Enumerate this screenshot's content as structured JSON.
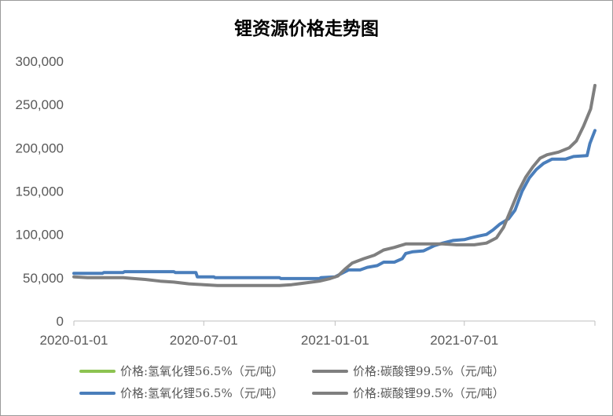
{
  "chart_data": {
    "type": "line",
    "title": "锂资源价格走势图",
    "xlabel": "",
    "ylabel": "",
    "ylim": [
      0,
      300000
    ],
    "yticks": [
      0,
      50000,
      100000,
      150000,
      200000,
      250000,
      300000
    ],
    "ytick_labels": [
      "0",
      "50,000",
      "100,000",
      "150,000",
      "200,000",
      "250,000",
      "300,000"
    ],
    "xlim": [
      "2020-01-01",
      "2021-12-31"
    ],
    "xticks": [
      "2020-01-01",
      "2020-07-01",
      "2021-01-01",
      "2021-07-01"
    ],
    "xtick_labels": [
      "2020-01-01",
      "2020-07-01",
      "2021-01-01",
      "2021-07-01"
    ],
    "grid": false,
    "legend_position": "bottom",
    "colors": {
      "legend_lithium_hydroxide_1": "#8dc351",
      "lithium_hydroxide": "#4a7ebb",
      "lithium_carbonate": "#7f7f7f"
    },
    "legend": [
      {
        "label": "价格:氢氧化锂56.5%（元/吨）",
        "color": "#8dc351"
      },
      {
        "label": "价格:碳酸锂99.5%（元/吨）",
        "color": "#7f7f7f"
      },
      {
        "label": "价格:氢氧化锂56.5%（元/吨）",
        "color": "#4a7ebb"
      },
      {
        "label": "价格:碳酸锂99.5%（元/吨）",
        "color": "#7f7f7f"
      }
    ],
    "series": [
      {
        "name": "价格:氢氧化锂56.5%（元/吨）",
        "color": "#4a7ebb",
        "points": [
          [
            "2020-01-01",
            55000
          ],
          [
            "2020-02-10",
            55000
          ],
          [
            "2020-02-12",
            56000
          ],
          [
            "2020-03-10",
            56000
          ],
          [
            "2020-03-12",
            57000
          ],
          [
            "2020-05-20",
            57000
          ],
          [
            "2020-05-22",
            56000
          ],
          [
            "2020-06-20",
            56000
          ],
          [
            "2020-06-22",
            51000
          ],
          [
            "2020-07-15",
            51000
          ],
          [
            "2020-07-17",
            50000
          ],
          [
            "2020-10-15",
            50000
          ],
          [
            "2020-10-17",
            49000
          ],
          [
            "2020-12-10",
            49000
          ],
          [
            "2020-12-12",
            50000
          ],
          [
            "2021-01-01",
            51000
          ],
          [
            "2021-01-08",
            54000
          ],
          [
            "2021-01-20",
            59000
          ],
          [
            "2021-02-05",
            59000
          ],
          [
            "2021-02-15",
            62000
          ],
          [
            "2021-03-01",
            64000
          ],
          [
            "2021-03-10",
            68000
          ],
          [
            "2021-03-25",
            68000
          ],
          [
            "2021-04-05",
            72000
          ],
          [
            "2021-04-10",
            78000
          ],
          [
            "2021-04-20",
            80000
          ],
          [
            "2021-05-05",
            81000
          ],
          [
            "2021-05-20",
            87000
          ],
          [
            "2021-06-01",
            90000
          ],
          [
            "2021-06-15",
            93000
          ],
          [
            "2021-07-01",
            94000
          ],
          [
            "2021-07-10",
            96000
          ],
          [
            "2021-07-20",
            98000
          ],
          [
            "2021-08-01",
            100000
          ],
          [
            "2021-08-10",
            105000
          ],
          [
            "2021-08-20",
            112000
          ],
          [
            "2021-09-01",
            118000
          ],
          [
            "2021-09-10",
            128000
          ],
          [
            "2021-09-20",
            150000
          ],
          [
            "2021-09-30",
            165000
          ],
          [
            "2021-10-10",
            175000
          ],
          [
            "2021-10-20",
            182000
          ],
          [
            "2021-11-01",
            187000
          ],
          [
            "2021-11-20",
            187000
          ],
          [
            "2021-12-01",
            190000
          ],
          [
            "2021-12-20",
            191000
          ],
          [
            "2021-12-24",
            205000
          ],
          [
            "2021-12-31",
            220000
          ]
        ]
      },
      {
        "name": "价格:碳酸锂99.5%（元/吨）",
        "color": "#7f7f7f",
        "points": [
          [
            "2020-01-01",
            51000
          ],
          [
            "2020-01-20",
            50000
          ],
          [
            "2020-02-20",
            50000
          ],
          [
            "2020-03-10",
            50000
          ],
          [
            "2020-03-25",
            49000
          ],
          [
            "2020-04-10",
            48000
          ],
          [
            "2020-05-01",
            46000
          ],
          [
            "2020-05-20",
            45000
          ],
          [
            "2020-06-10",
            43000
          ],
          [
            "2020-07-01",
            42000
          ],
          [
            "2020-07-20",
            41000
          ],
          [
            "2020-09-01",
            41000
          ],
          [
            "2020-10-15",
            41000
          ],
          [
            "2020-11-01",
            42000
          ],
          [
            "2020-11-20",
            44000
          ],
          [
            "2020-12-10",
            46000
          ],
          [
            "2020-12-25",
            49000
          ],
          [
            "2021-01-05",
            52000
          ],
          [
            "2021-01-15",
            60000
          ],
          [
            "2021-01-25",
            67000
          ],
          [
            "2021-02-10",
            72000
          ],
          [
            "2021-02-25",
            76000
          ],
          [
            "2021-03-10",
            82000
          ],
          [
            "2021-03-25",
            85000
          ],
          [
            "2021-04-10",
            89000
          ],
          [
            "2021-04-25",
            89000
          ],
          [
            "2021-05-15",
            89000
          ],
          [
            "2021-06-01",
            89000
          ],
          [
            "2021-06-20",
            88000
          ],
          [
            "2021-07-01",
            88000
          ],
          [
            "2021-07-15",
            88000
          ],
          [
            "2021-08-01",
            90000
          ],
          [
            "2021-08-15",
            96000
          ],
          [
            "2021-08-25",
            108000
          ],
          [
            "2021-09-05",
            130000
          ],
          [
            "2021-09-15",
            150000
          ],
          [
            "2021-09-25",
            166000
          ],
          [
            "2021-10-05",
            178000
          ],
          [
            "2021-10-15",
            188000
          ],
          [
            "2021-10-25",
            192000
          ],
          [
            "2021-11-10",
            195000
          ],
          [
            "2021-11-25",
            200000
          ],
          [
            "2021-12-05",
            208000
          ],
          [
            "2021-12-15",
            225000
          ],
          [
            "2021-12-25",
            245000
          ],
          [
            "2021-12-31",
            272000
          ]
        ]
      }
    ]
  }
}
